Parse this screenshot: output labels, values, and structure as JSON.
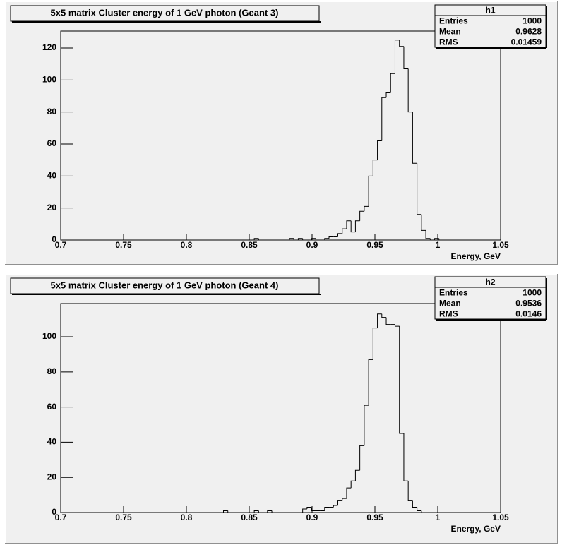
{
  "chart_data": [
    {
      "type": "histogram",
      "title": "5x5 matrix Cluster energy of 1 GeV photon (Geant 3)",
      "x_label": "Energy, GeV",
      "bins": [
        0.7,
        0.7035,
        0.707,
        0.7105,
        0.714,
        0.7175,
        0.721,
        0.7245,
        0.728,
        0.7315,
        0.735,
        0.7385,
        0.742,
        0.7455,
        0.749,
        0.7525,
        0.756,
        0.7595,
        0.763,
        0.7665,
        0.77,
        0.7735,
        0.777,
        0.7805,
        0.784,
        0.7875,
        0.791,
        0.7945,
        0.798,
        0.8015,
        0.805,
        0.8085,
        0.812,
        0.8155,
        0.819,
        0.8225,
        0.826,
        0.8295,
        0.833,
        0.8365,
        0.84,
        0.8435,
        0.847,
        0.8505,
        0.854,
        0.8575,
        0.861,
        0.8645,
        0.868,
        0.8715,
        0.875,
        0.8785,
        0.882,
        0.8855,
        0.889,
        0.8925,
        0.896,
        0.8995,
        0.903,
        0.9065,
        0.91,
        0.9135,
        0.917,
        0.9205,
        0.924,
        0.9275,
        0.931,
        0.9345,
        0.938,
        0.9415,
        0.945,
        0.9485,
        0.952,
        0.9555,
        0.959,
        0.9625,
        0.966,
        0.9695,
        0.973,
        0.9765,
        0.98,
        0.9835,
        0.987,
        0.9905,
        0.994,
        0.9975,
        1.001,
        1.0045,
        1.008,
        1.0115,
        1.015,
        1.0185,
        1.022,
        1.0255,
        1.029,
        1.0325,
        1.036,
        1.0395,
        1.043,
        1.0465,
        1.05
      ],
      "values": [
        0,
        0,
        0,
        0,
        0,
        0,
        0,
        0,
        0,
        0,
        0,
        0,
        0,
        0,
        0,
        0,
        0,
        0,
        0,
        0,
        0,
        0,
        0,
        0,
        0,
        0,
        0,
        0,
        0,
        0,
        0,
        0,
        0,
        0,
        0,
        0,
        0,
        0,
        0,
        0,
        0,
        0,
        0,
        0,
        1,
        0,
        0,
        0,
        0,
        0,
        0,
        0,
        1,
        0,
        1,
        0,
        0,
        1,
        0,
        0,
        1,
        2,
        2,
        4,
        7,
        12,
        5,
        12,
        18,
        21,
        40,
        50,
        62,
        89,
        92,
        104,
        125,
        121,
        107,
        80,
        48,
        16,
        6,
        1,
        0,
        1,
        0,
        0,
        0,
        0,
        0,
        0,
        0,
        0,
        0,
        0,
        0,
        0,
        0,
        0
      ],
      "color": "#000000",
      "xlim": [
        0.7,
        1.05
      ],
      "xticks": [
        0.7,
        0.75,
        0.8,
        0.85,
        0.9,
        0.95,
        1,
        1.05
      ],
      "ylim": [
        0,
        130.6
      ],
      "yticks": [
        0,
        20,
        40,
        60,
        80,
        100,
        120
      ],
      "stats": {
        "title": "h1",
        "labels": [
          "Entries",
          "Mean",
          "RMS"
        ],
        "values": [
          1000,
          0.9628,
          0.01459
        ]
      }
    },
    {
      "type": "histogram",
      "title": "5x5 matrix Cluster energy of 1 GeV photon (Geant 4)",
      "x_label": "Energy, GeV",
      "bins": [
        0.7,
        0.7035,
        0.707,
        0.7105,
        0.714,
        0.7175,
        0.721,
        0.7245,
        0.728,
        0.7315,
        0.735,
        0.7385,
        0.742,
        0.7455,
        0.749,
        0.7525,
        0.756,
        0.7595,
        0.763,
        0.7665,
        0.77,
        0.7735,
        0.777,
        0.7805,
        0.784,
        0.7875,
        0.791,
        0.7945,
        0.798,
        0.8015,
        0.805,
        0.8085,
        0.812,
        0.8155,
        0.819,
        0.8225,
        0.826,
        0.8295,
        0.833,
        0.8365,
        0.84,
        0.8435,
        0.847,
        0.8505,
        0.854,
        0.8575,
        0.861,
        0.8645,
        0.868,
        0.8715,
        0.875,
        0.8785,
        0.882,
        0.8855,
        0.889,
        0.8925,
        0.896,
        0.8995,
        0.903,
        0.9065,
        0.91,
        0.9135,
        0.917,
        0.9205,
        0.924,
        0.9275,
        0.931,
        0.9345,
        0.938,
        0.9415,
        0.945,
        0.9485,
        0.952,
        0.9555,
        0.959,
        0.9625,
        0.966,
        0.9695,
        0.973,
        0.9765,
        0.98,
        0.9835,
        0.987,
        0.9905,
        0.994,
        0.9975,
        1.001,
        1.0045,
        1.008,
        1.0115,
        1.015,
        1.0185,
        1.022,
        1.0255,
        1.029,
        1.0325,
        1.036,
        1.0395,
        1.043,
        1.0465,
        1.05
      ],
      "values": [
        0,
        0,
        0,
        0,
        0,
        0,
        0,
        0,
        0,
        0,
        0,
        0,
        0,
        0,
        0,
        0,
        0,
        0,
        0,
        0,
        0,
        0,
        0,
        0,
        0,
        0,
        0,
        0,
        0,
        0,
        0,
        0,
        0,
        0,
        0,
        0,
        0,
        1,
        0,
        0,
        0,
        0,
        0,
        0,
        1,
        0,
        0,
        1,
        0,
        0,
        0,
        0,
        0,
        0,
        0,
        2,
        3,
        1,
        1,
        1,
        3,
        3,
        4,
        7,
        8,
        14,
        18,
        24,
        38,
        61,
        87,
        105,
        113,
        111,
        107,
        107,
        106,
        45,
        18,
        7,
        3,
        1,
        0,
        0,
        0,
        0,
        0,
        0,
        0,
        0,
        0,
        0,
        0,
        0,
        0,
        0,
        0,
        0,
        0,
        0
      ],
      "color": "#000000",
      "xlim": [
        0.7,
        1.05
      ],
      "xticks": [
        0.7,
        0.75,
        0.8,
        0.85,
        0.9,
        0.95,
        1,
        1.05
      ],
      "ylim": [
        0,
        118.9
      ],
      "yticks": [
        0,
        20,
        40,
        60,
        80,
        100
      ],
      "stats": {
        "title": "h2",
        "labels": [
          "Entries",
          "Mean",
          "RMS"
        ],
        "values": [
          1000,
          0.9536,
          0.0146
        ]
      }
    }
  ]
}
